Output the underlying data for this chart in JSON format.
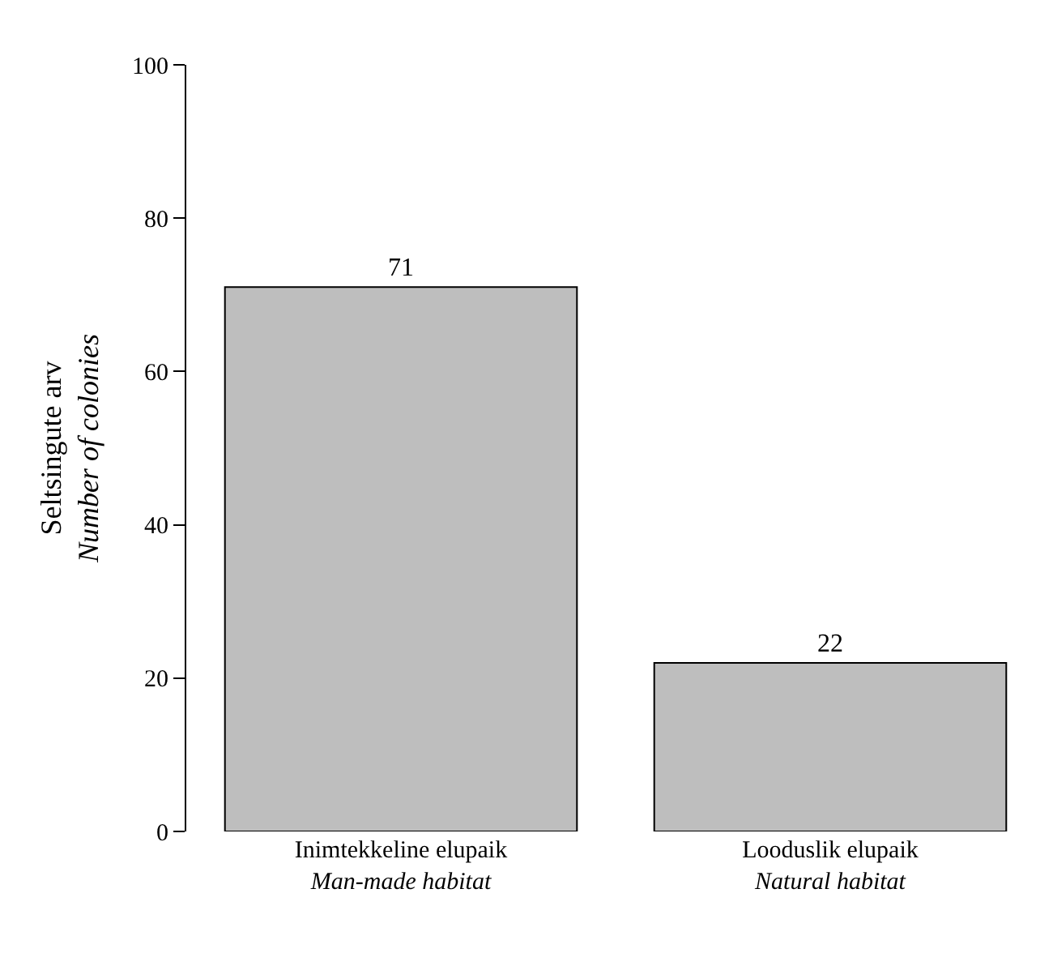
{
  "chart_data": {
    "type": "bar",
    "ylabel": "Seltsingute arv\nNumber of colonies",
    "categories": [
      "Inimtekkeline elupaik\nMan-made habitat",
      "Looduslik elupaik\nNatural habitat"
    ],
    "values": [
      71,
      22
    ],
    "color": "#bebebe",
    "ylim": [
      0,
      100
    ],
    "yticks": [
      0,
      20,
      40,
      60,
      80,
      100
    ],
    "data_labels": true
  }
}
